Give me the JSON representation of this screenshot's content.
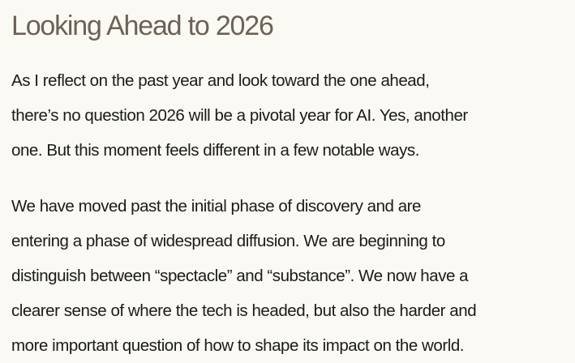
{
  "page": {
    "background_color": "#faf9f3",
    "heading_color": "#6d6157",
    "body_text_color": "#1b1b1a"
  },
  "article": {
    "title": "Looking Ahead to 2026",
    "paragraphs": [
      {
        "text": "As I reflect on the past year and look toward the one ahead, there’s no question 2026 will be a pivotal year for AI. Yes, another one. But this moment feels different in a few notable ways.",
        "lines": [
          "As I reflect on the past year and look toward the one ahead,",
          "there’s no question 2026 will be a pivotal year for AI. Yes, another",
          "one. But this moment feels different in a few notable ways."
        ]
      },
      {
        "text": "We have moved past the initial phase of discovery and are entering a phase of widespread diffusion. We are beginning to distinguish between “spectacle” and “substance”. We now have a clearer sense of where the tech is headed, but also the harder and more important question of how to shape its impact on the world.",
        "lines": [
          "We have moved past the initial phase of discovery and are",
          "entering a phase of widespread diffusion. We are beginning to",
          "distinguish between “spectacle” and “substance”. We now have a",
          "clearer sense of where the tech is headed, but also the harder and",
          "more important question of how to shape its impact on the world."
        ]
      }
    ]
  }
}
